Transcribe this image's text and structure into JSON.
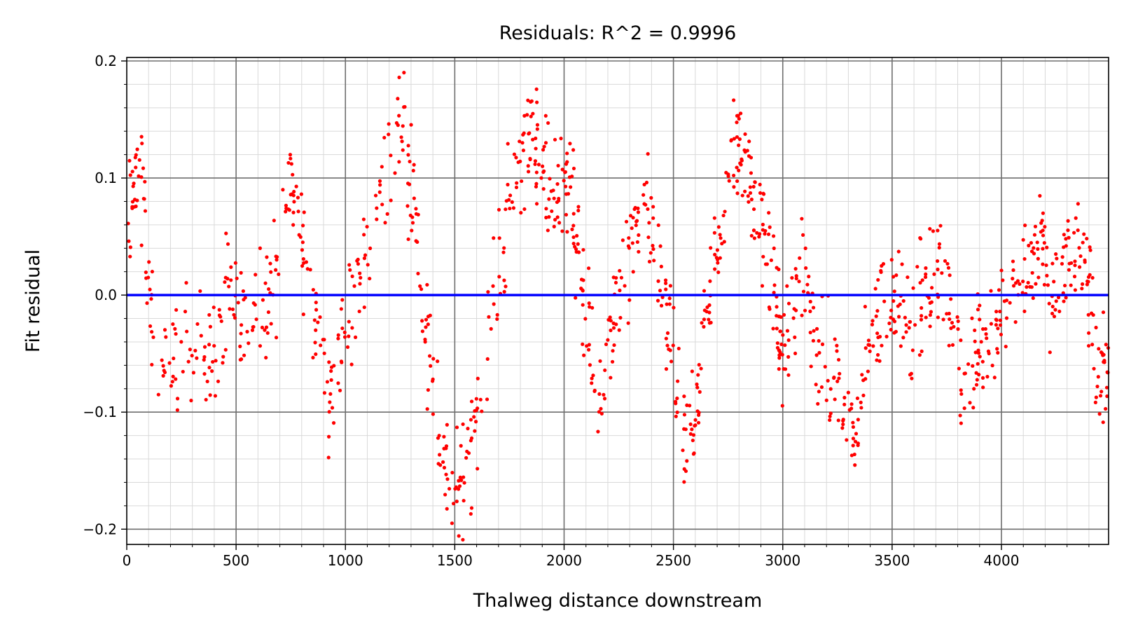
{
  "chart_data": {
    "type": "scatter",
    "title": "Residuals: R^2 = 0.9996",
    "xlabel": "Thalweg distance downstream",
    "ylabel": "Fit residual",
    "xlim": [
      0,
      4490
    ],
    "ylim": [
      -0.213,
      0.203
    ],
    "x_ticks": [
      0,
      500,
      1000,
      1500,
      2000,
      2500,
      3000,
      3500,
      4000
    ],
    "x_tick_labels": [
      "0",
      "500",
      "1000",
      "1500",
      "2000",
      "2500",
      "3000",
      "3500",
      "4000"
    ],
    "y_ticks": [
      0.2,
      0.1,
      0.0,
      -0.1,
      -0.2
    ],
    "y_tick_labels": [
      "0.2",
      "0.1",
      "0.0",
      "−0.1",
      "−0.2"
    ],
    "grid": true,
    "minor_grid": true,
    "reference_line": {
      "y": 0.0,
      "color": "#0000ff"
    },
    "marker_color": "#ff0000",
    "residual_trend": {
      "x": [
        0,
        60,
        140,
        260,
        380,
        470,
        560,
        660,
        760,
        850,
        930,
        1020,
        1120,
        1250,
        1320,
        1390,
        1480,
        1560,
        1660,
        1760,
        1840,
        1900,
        1960,
        2020,
        2080,
        2150,
        2230,
        2320,
        2400,
        2480,
        2560,
        2620,
        2700,
        2780,
        2840,
        2900,
        2970,
        3000,
        3080,
        3160,
        3250,
        3330,
        3420,
        3500,
        3580,
        3660,
        3740,
        3830,
        3900,
        3980,
        4080,
        4160,
        4230,
        4300,
        4380,
        4440,
        4490
      ],
      "y": [
        0.05,
        0.12,
        -0.1,
        -0.03,
        -0.06,
        0.02,
        -0.04,
        0.0,
        0.1,
        0.0,
        -0.09,
        -0.02,
        0.06,
        0.15,
        0.08,
        -0.07,
        -0.17,
        -0.15,
        -0.02,
        0.09,
        0.14,
        0.1,
        0.09,
        0.11,
        0.0,
        -0.09,
        -0.02,
        0.04,
        0.07,
        -0.04,
        -0.14,
        -0.08,
        0.05,
        0.12,
        0.11,
        0.06,
        0.0,
        -0.07,
        0.03,
        -0.05,
        -0.08,
        -0.12,
        -0.03,
        0.01,
        -0.02,
        0.0,
        0.02,
        -0.08,
        -0.04,
        -0.02,
        0.02,
        0.04,
        0.0,
        0.03,
        0.04,
        -0.07,
        -0.07
      ]
    },
    "points_per_series_step": 22
  }
}
